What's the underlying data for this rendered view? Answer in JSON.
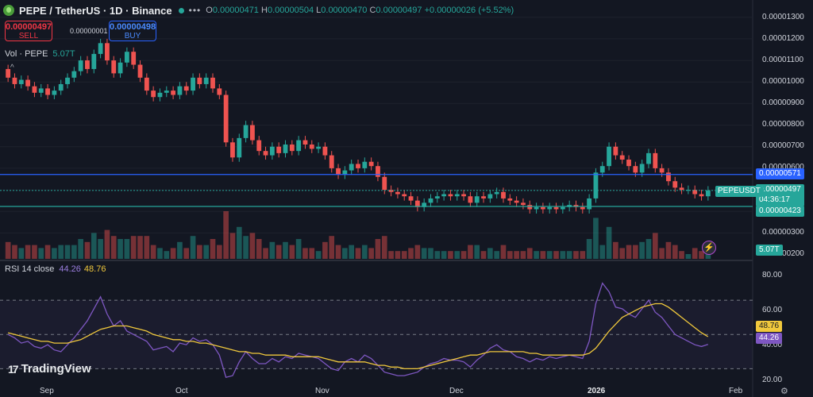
{
  "header": {
    "symbol": "PEPE / TetherUS · 1D · Binance",
    "more": "•••",
    "ohlc": {
      "o_label": "O",
      "o_value": "0.00000471",
      "h_label": "H",
      "h_value": "0.00000504",
      "l_label": "L",
      "l_value": "0.00000470",
      "c_label": "C",
      "c_value": "0.00000497",
      "change": "+0.00000026 (+5.52%)"
    }
  },
  "trade": {
    "sell_price": "0.00000497",
    "sell_label": "SELL",
    "spread": "0.00000001",
    "buy_price": "0.00000498",
    "buy_label": "BUY"
  },
  "volume_legend": {
    "label": "Vol · PEPE",
    "value": "5.07T"
  },
  "rsi_legend": {
    "label": "RSI 14 close",
    "rsi": "44.26",
    "ma": "48.76"
  },
  "price_axis": [
    "0.00001300",
    "0.00001200",
    "0.00001100",
    "0.00001000",
    "0.00000900",
    "0.00000800",
    "0.00000700",
    "0.00000600",
    "0.00000300",
    "0.00000200"
  ],
  "price_tags": {
    "blue_line": "0.00000571",
    "current": "0.00000497",
    "countdown": "04:36:17",
    "green_line": "0.00000423",
    "volume": "5.07T",
    "symbol_tag": "PEPEUSDT"
  },
  "rsi_axis": [
    "80.00",
    "60.00",
    "40.00",
    "20.00"
  ],
  "rsi_tags": {
    "ma": "48.76",
    "rsi": "44.26"
  },
  "time_axis": [
    "Sep",
    "Oct",
    "Nov",
    "Dec",
    "2026",
    "Feb"
  ],
  "logo": {
    "glyph": "17",
    "text": "TradingView"
  },
  "icons": {
    "coin": "pepe-coin-icon",
    "flash": "flash-icon",
    "gear": "gear-icon",
    "caret": "caret-up-icon"
  },
  "colors": {
    "up": "#26a69a",
    "down": "#ef5350",
    "blue_line": "#2962ff",
    "rsi": "#7e57c2",
    "rsi_ma": "#f0c83c",
    "background": "#131722"
  },
  "chart_data": {
    "type": "candlestick",
    "price_unit": "USDT",
    "candles": [
      {
        "o": 1.06,
        "c": 1.02
      },
      {
        "o": 1.02,
        "c": 0.99
      },
      {
        "o": 0.99,
        "c": 1.01
      },
      {
        "o": 1.01,
        "c": 0.98
      },
      {
        "o": 0.98,
        "c": 0.95
      },
      {
        "o": 0.95,
        "c": 0.97
      },
      {
        "o": 0.97,
        "c": 0.94
      },
      {
        "o": 0.94,
        "c": 0.96
      },
      {
        "o": 0.96,
        "c": 0.99
      },
      {
        "o": 0.99,
        "c": 1.02
      },
      {
        "o": 1.02,
        "c": 1.05
      },
      {
        "o": 1.05,
        "c": 1.1
      },
      {
        "o": 1.1,
        "c": 1.06
      },
      {
        "o": 1.06,
        "c": 1.13
      },
      {
        "o": 1.13,
        "c": 1.18
      },
      {
        "o": 1.18,
        "c": 1.1
      },
      {
        "o": 1.1,
        "c": 1.04
      },
      {
        "o": 1.04,
        "c": 1.09
      },
      {
        "o": 1.09,
        "c": 1.14
      },
      {
        "o": 1.14,
        "c": 1.08
      },
      {
        "o": 1.08,
        "c": 1.02
      },
      {
        "o": 1.02,
        "c": 0.96
      },
      {
        "o": 0.96,
        "c": 0.93
      },
      {
        "o": 0.93,
        "c": 0.95
      },
      {
        "o": 0.95,
        "c": 0.96
      },
      {
        "o": 0.96,
        "c": 0.94
      },
      {
        "o": 0.94,
        "c": 0.98
      },
      {
        "o": 0.98,
        "c": 0.96
      },
      {
        "o": 0.96,
        "c": 1.02
      },
      {
        "o": 1.02,
        "c": 0.99
      },
      {
        "o": 0.99,
        "c": 1.02
      },
      {
        "o": 1.02,
        "c": 0.97
      },
      {
        "o": 0.97,
        "c": 0.94
      },
      {
        "o": 0.94,
        "c": 0.72
      },
      {
        "o": 0.72,
        "c": 0.65
      },
      {
        "o": 0.65,
        "c": 0.74
      },
      {
        "o": 0.74,
        "c": 0.8
      },
      {
        "o": 0.8,
        "c": 0.73
      },
      {
        "o": 0.73,
        "c": 0.68
      },
      {
        "o": 0.68,
        "c": 0.66
      },
      {
        "o": 0.66,
        "c": 0.7
      },
      {
        "o": 0.7,
        "c": 0.67
      },
      {
        "o": 0.67,
        "c": 0.71
      },
      {
        "o": 0.71,
        "c": 0.68
      },
      {
        "o": 0.68,
        "c": 0.73
      },
      {
        "o": 0.73,
        "c": 0.71
      },
      {
        "o": 0.71,
        "c": 0.69
      },
      {
        "o": 0.69,
        "c": 0.7
      },
      {
        "o": 0.7,
        "c": 0.66
      },
      {
        "o": 0.66,
        "c": 0.6
      },
      {
        "o": 0.6,
        "c": 0.57
      },
      {
        "o": 0.57,
        "c": 0.59
      },
      {
        "o": 0.59,
        "c": 0.62
      },
      {
        "o": 0.62,
        "c": 0.6
      },
      {
        "o": 0.6,
        "c": 0.63
      },
      {
        "o": 0.63,
        "c": 0.61
      },
      {
        "o": 0.61,
        "c": 0.56
      },
      {
        "o": 0.56,
        "c": 0.5
      },
      {
        "o": 0.5,
        "c": 0.49
      },
      {
        "o": 0.49,
        "c": 0.48
      },
      {
        "o": 0.48,
        "c": 0.47
      },
      {
        "o": 0.47,
        "c": 0.45
      },
      {
        "o": 0.45,
        "c": 0.42
      },
      {
        "o": 0.42,
        "c": 0.44
      },
      {
        "o": 0.44,
        "c": 0.46
      },
      {
        "o": 0.46,
        "c": 0.47
      },
      {
        "o": 0.47,
        "c": 0.48
      },
      {
        "o": 0.48,
        "c": 0.47
      },
      {
        "o": 0.47,
        "c": 0.48
      },
      {
        "o": 0.48,
        "c": 0.47
      },
      {
        "o": 0.47,
        "c": 0.44
      },
      {
        "o": 0.44,
        "c": 0.47
      },
      {
        "o": 0.47,
        "c": 0.46
      },
      {
        "o": 0.46,
        "c": 0.48
      },
      {
        "o": 0.48,
        "c": 0.49
      },
      {
        "o": 0.49,
        "c": 0.46
      },
      {
        "o": 0.46,
        "c": 0.45
      },
      {
        "o": 0.45,
        "c": 0.44
      },
      {
        "o": 0.44,
        "c": 0.43
      },
      {
        "o": 0.43,
        "c": 0.41
      },
      {
        "o": 0.41,
        "c": 0.42
      },
      {
        "o": 0.42,
        "c": 0.41
      },
      {
        "o": 0.41,
        "c": 0.42
      },
      {
        "o": 0.42,
        "c": 0.41
      },
      {
        "o": 0.41,
        "c": 0.42
      },
      {
        "o": 0.42,
        "c": 0.43
      },
      {
        "o": 0.43,
        "c": 0.42
      },
      {
        "o": 0.42,
        "c": 0.41
      },
      {
        "o": 0.41,
        "c": 0.46
      },
      {
        "o": 0.46,
        "c": 0.58
      },
      {
        "o": 0.58,
        "c": 0.61
      },
      {
        "o": 0.61,
        "c": 0.7
      },
      {
        "o": 0.7,
        "c": 0.66
      },
      {
        "o": 0.66,
        "c": 0.64
      },
      {
        "o": 0.64,
        "c": 0.61
      },
      {
        "o": 0.61,
        "c": 0.58
      },
      {
        "o": 0.58,
        "c": 0.62
      },
      {
        "o": 0.62,
        "c": 0.67
      },
      {
        "o": 0.67,
        "c": 0.6
      },
      {
        "o": 0.6,
        "c": 0.58
      },
      {
        "o": 0.58,
        "c": 0.54
      },
      {
        "o": 0.54,
        "c": 0.51
      },
      {
        "o": 0.51,
        "c": 0.5
      },
      {
        "o": 0.5,
        "c": 0.5
      },
      {
        "o": 0.5,
        "c": 0.48
      },
      {
        "o": 0.48,
        "c": 0.47
      },
      {
        "o": 0.47,
        "c": 0.497
      }
    ],
    "price_ylim": [
      0.18,
      1.38
    ],
    "horizontal_lines": [
      {
        "value": 0.571,
        "color": "#2962ff"
      },
      {
        "value": 0.423,
        "color": "#26a69a"
      }
    ],
    "rsi": {
      "ylim": [
        20,
        90
      ],
      "bands": [
        70,
        50,
        30
      ],
      "rsi": [
        50,
        48,
        45,
        46,
        43,
        42,
        44,
        41,
        40,
        44,
        48,
        53,
        58,
        65,
        72,
        62,
        55,
        58,
        52,
        50,
        48,
        46,
        41,
        42,
        43,
        40,
        45,
        44,
        48,
        46,
        47,
        44,
        38,
        25,
        26,
        34,
        40,
        36,
        33,
        33,
        36,
        34,
        37,
        36,
        39,
        38,
        37,
        36,
        33,
        30,
        29,
        34,
        36,
        34,
        38,
        36,
        32,
        28,
        27,
        26,
        26,
        27,
        28,
        31,
        33,
        34,
        36,
        35,
        35,
        34,
        31,
        35,
        38,
        42,
        44,
        41,
        40,
        37,
        36,
        34,
        36,
        35,
        37,
        36,
        37,
        38,
        37,
        36,
        46,
        68,
        80,
        75,
        66,
        65,
        62,
        60,
        65,
        70,
        63,
        60,
        55,
        50,
        48,
        46,
        44,
        43,
        44.26
      ],
      "ma": [
        51,
        50,
        49,
        48,
        47,
        46,
        46,
        45,
        45,
        45,
        46,
        47,
        49,
        51,
        53,
        54,
        55,
        55,
        55,
        54,
        53,
        52,
        50,
        49,
        48,
        47,
        47,
        46,
        46,
        45,
        45,
        44,
        43,
        42,
        41,
        40,
        40,
        39,
        39,
        38,
        38,
        38,
        38,
        37,
        37,
        37,
        37,
        37,
        36,
        35,
        34,
        34,
        34,
        34,
        34,
        33,
        32,
        32,
        31,
        31,
        30,
        30,
        30,
        31,
        32,
        33,
        34,
        35,
        36,
        37,
        38,
        38,
        39,
        40,
        40,
        40,
        40,
        40,
        40,
        39,
        39,
        38,
        38,
        38,
        38,
        38,
        38,
        38,
        39,
        42,
        47,
        52,
        56,
        60,
        62,
        64,
        66,
        67,
        68,
        68,
        66,
        63,
        60,
        57,
        54,
        51,
        48.76
      ]
    }
  }
}
